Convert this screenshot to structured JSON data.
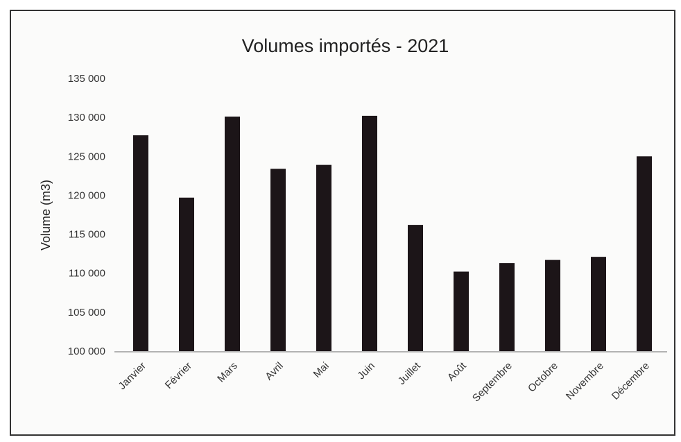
{
  "chart_data": {
    "type": "bar",
    "title": "Volumes importés - 2021",
    "xlabel": "",
    "ylabel": "Volume (m3)",
    "ylim": [
      100000,
      135000
    ],
    "yticks": [
      "100 000",
      "105 000",
      "110 000",
      "115 000",
      "120 000",
      "125 000",
      "130 000",
      "135 000"
    ],
    "grid": false,
    "categories": [
      "Janvier",
      "Février",
      "Mars",
      "Avril",
      "Mai",
      "Juin",
      "Juillet",
      "Août",
      "Septembre",
      "Octobre",
      "Novembre",
      "Décembre"
    ],
    "values": [
      127700,
      119700,
      130100,
      123400,
      123900,
      130200,
      116200,
      110200,
      111300,
      111700,
      112100,
      125000
    ],
    "bar_color": "#1c1518"
  }
}
